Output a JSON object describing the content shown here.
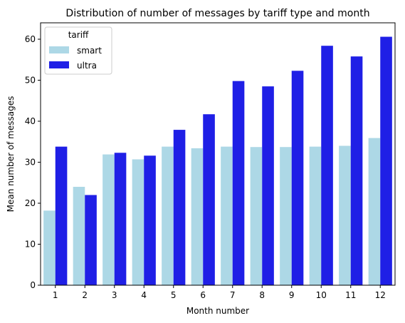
{
  "chart_data": {
    "type": "bar",
    "title": "Distribution of number of messages by tariff type and month",
    "xlabel": "Month number",
    "ylabel": "Mean number of messages",
    "categories": [
      "1",
      "2",
      "3",
      "4",
      "5",
      "6",
      "7",
      "8",
      "9",
      "10",
      "11",
      "12"
    ],
    "ylim": [
      0,
      64
    ],
    "yticks": [
      0,
      10,
      20,
      30,
      40,
      50,
      60
    ],
    "series": [
      {
        "name": "smart",
        "color": "#add8e6",
        "values": [
          18.2,
          24.0,
          31.9,
          30.7,
          33.8,
          33.4,
          33.8,
          33.7,
          33.7,
          33.8,
          34.0,
          35.9
        ]
      },
      {
        "name": "ultra",
        "color": "#1f1fe6",
        "values": [
          33.8,
          22.0,
          32.3,
          31.6,
          37.9,
          41.7,
          49.8,
          48.5,
          52.3,
          58.4,
          55.8,
          60.6
        ]
      }
    ],
    "legend": {
      "title": "tariff",
      "placement": "top-left"
    },
    "grid": false
  }
}
